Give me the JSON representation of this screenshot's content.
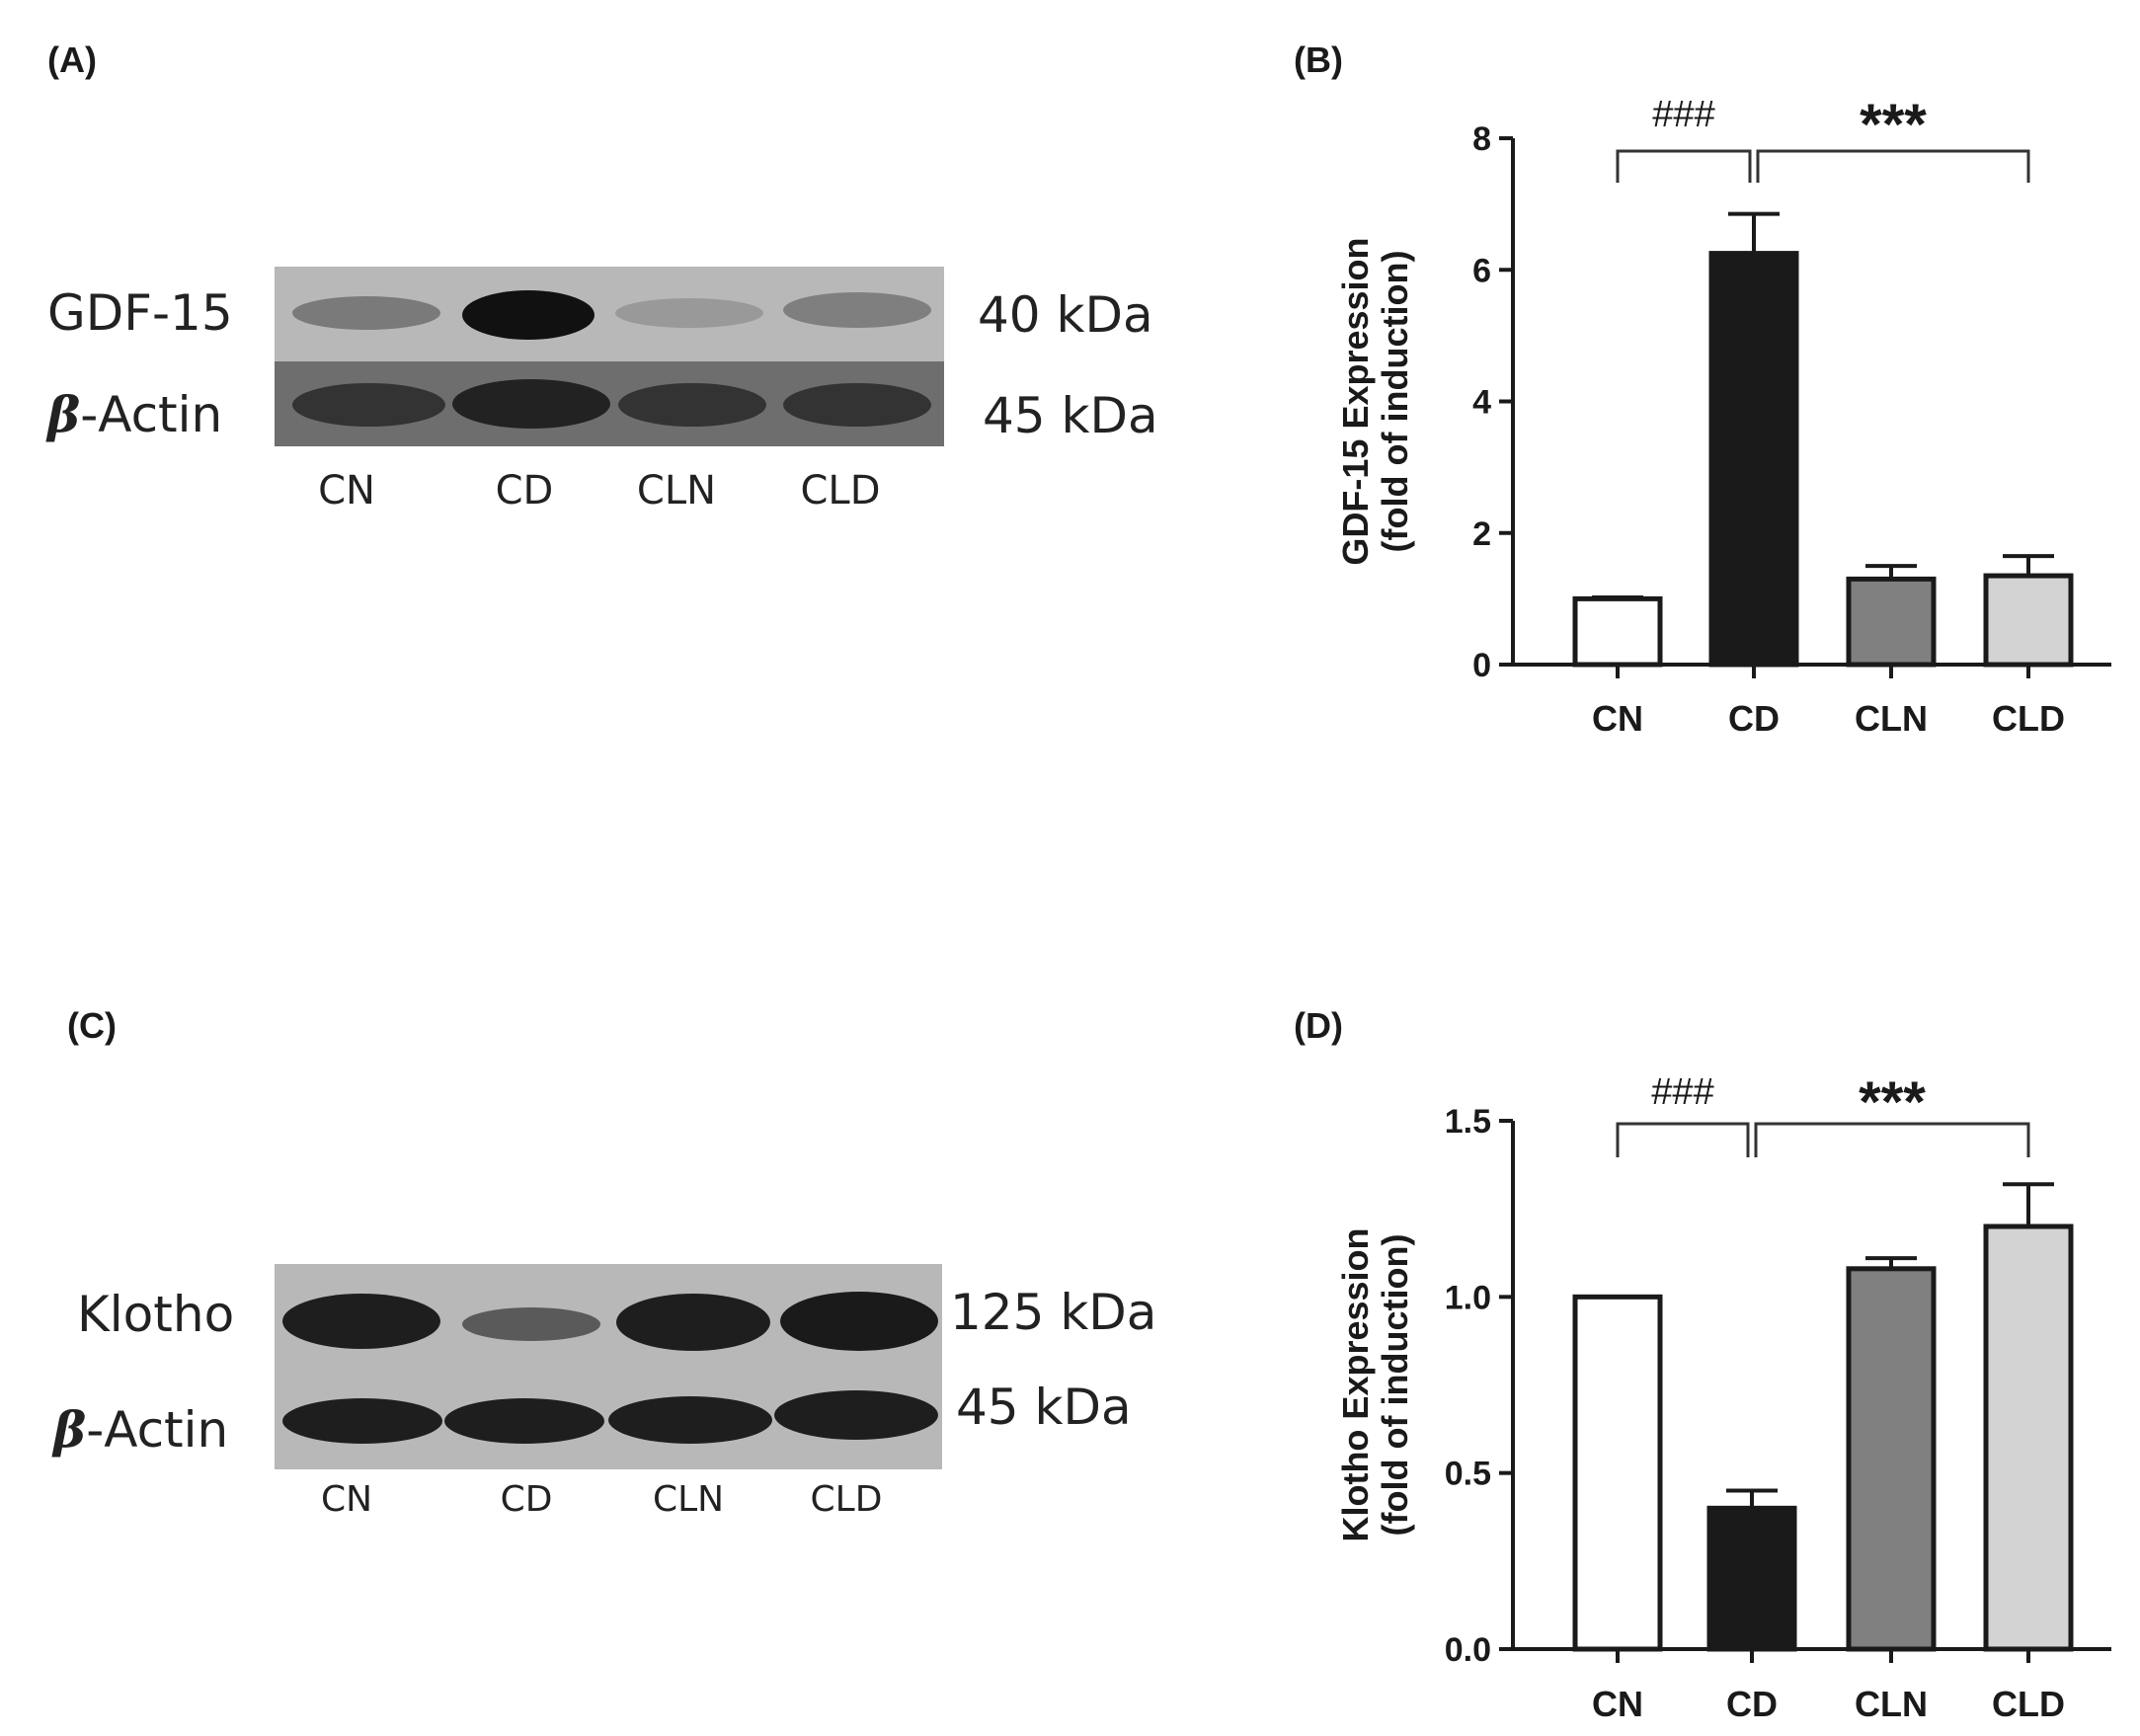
{
  "panels": {
    "a": {
      "letter": "(A)"
    },
    "b": {
      "letter": "(B)"
    },
    "c": {
      "letter": "(C)"
    },
    "d": {
      "letter": "(D)"
    }
  },
  "blot_a": {
    "target_label": "GDF-15",
    "target_kda": "40 kDa",
    "loading_beta": "β",
    "loading_rest": "-Actin",
    "loading_kda": "45 kDa",
    "lanes": [
      "CN",
      "CD",
      "CLN",
      "CLD"
    ]
  },
  "blot_c": {
    "target_label": "Klotho",
    "target_kda": "125 kDa",
    "loading_beta": "β",
    "loading_rest": "-Actin",
    "loading_kda": "45 kDa",
    "lanes": [
      "CN",
      "CD",
      "CLN",
      "CLD"
    ]
  },
  "chart_data": [
    {
      "type": "bar",
      "panel": "(B)",
      "categories": [
        "CN",
        "CD",
        "CLN",
        "CLD"
      ],
      "values": [
        1.0,
        6.25,
        1.3,
        1.35
      ],
      "errors": [
        0.02,
        0.6,
        0.2,
        0.3
      ],
      "bar_colors": [
        "#ffffff",
        "#1a1a1a",
        "#808080",
        "#d3d3d3"
      ],
      "ylabel": "GDF-15 Expression",
      "ylabel2": "(fold of induction)",
      "ylim": [
        0,
        8
      ],
      "yticks": [
        "0",
        "2",
        "4",
        "6",
        "8"
      ],
      "annotations": [
        {
          "text": "###",
          "bracket": [
            "CN",
            "CD"
          ]
        },
        {
          "text": "***",
          "bracket": [
            "CD",
            "CLD"
          ]
        }
      ]
    },
    {
      "type": "bar",
      "panel": "(D)",
      "categories": [
        "CN",
        "CD",
        "CLN",
        "CLD"
      ],
      "values": [
        1.0,
        0.4,
        1.08,
        1.2
      ],
      "errors": [
        0.0,
        0.05,
        0.03,
        0.12
      ],
      "bar_colors": [
        "#ffffff",
        "#1a1a1a",
        "#808080",
        "#d3d3d3"
      ],
      "ylabel": "Klotho Expression",
      "ylabel2": "(fold of induction)",
      "ylim": [
        0,
        1.5
      ],
      "yticks": [
        "0.0",
        "0.5",
        "1.0",
        "1.5"
      ],
      "annotations": [
        {
          "text": "###",
          "bracket": [
            "CN",
            "CD"
          ]
        },
        {
          "text": "***",
          "bracket": [
            "CD",
            "CLD"
          ]
        }
      ]
    }
  ]
}
